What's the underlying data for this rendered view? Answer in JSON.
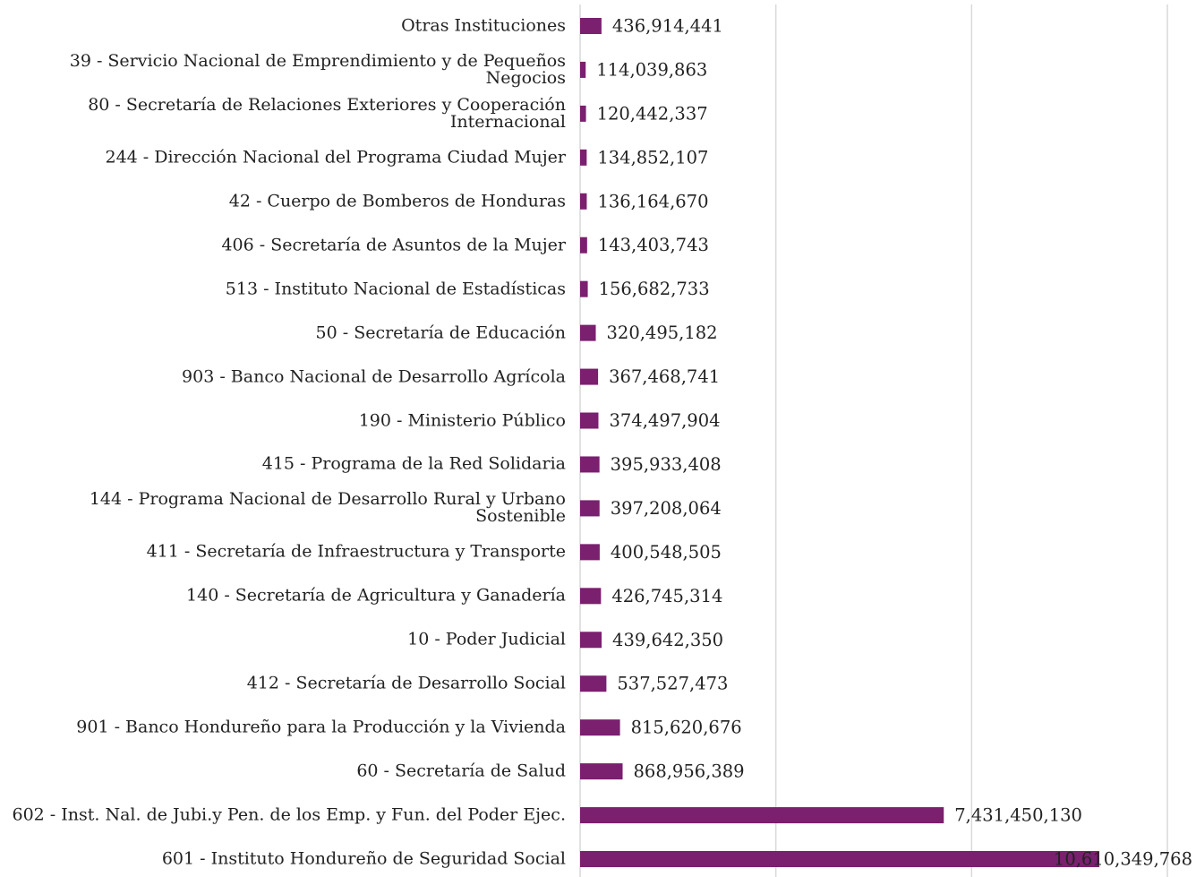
{
  "chart_data": {
    "type": "bar",
    "orientation": "horizontal",
    "categories": [
      "Otras Instituciones",
      "39 - Servicio Nacional de Emprendimiento y de Pequeños Negocios",
      "80 - Secretaría de Relaciones Exteriores y Cooperación Internacional",
      "244 - Dirección Nacional del Programa Ciudad Mujer",
      "42 - Cuerpo de Bomberos de Honduras",
      "406 - Secretaría de Asuntos de la Mujer",
      "513 - Instituto Nacional de Estadísticas",
      "50 - Secretaría de Educación",
      "903 - Banco Nacional de Desarrollo Agrícola",
      "190 - Ministerio Público",
      "415 - Programa de la Red Solidaria",
      "144 - Programa Nacional de Desarrollo Rural y Urbano Sostenible",
      "411 - Secretaría de Infraestructura y Transporte",
      "140 - Secretaría de Agricultura y Ganadería",
      "10 - Poder Judicial",
      "412 - Secretaría de Desarrollo Social",
      "901 - Banco Hondureño para la Producción y la Vivienda",
      "60 - Secretaría de Salud",
      "602 - Inst. Nal. de Jubi.y Pen. de los Emp. y Fun. del Poder Ejec.",
      "601 - Instituto Hondureño de Seguridad Social"
    ],
    "values": [
      436914441,
      114039863,
      120442337,
      134852107,
      136164670,
      143403743,
      156682733,
      320495182,
      367468741,
      374497904,
      395933408,
      397208064,
      400548505,
      426745314,
      439642350,
      537527473,
      815620676,
      868956389,
      7431450130,
      10610349768
    ],
    "value_labels": [
      "436,914,441",
      "114,039,863",
      "120,442,337",
      "134,852,107",
      "136,164,670",
      "143,403,743",
      "156,682,733",
      "320,495,182",
      "367,468,741",
      "374,497,904",
      "395,933,408",
      "397,208,064",
      "400,548,505",
      "426,745,314",
      "439,642,350",
      "537,527,473",
      "815,620,676",
      "868,956,389",
      "7,431,450,130",
      "10,610,349,768"
    ],
    "color": "#7b1f6f",
    "xlim": [
      0,
      12000000000
    ],
    "xticks": [
      0,
      4000000000,
      8000000000,
      12000000000
    ],
    "grid": true
  }
}
